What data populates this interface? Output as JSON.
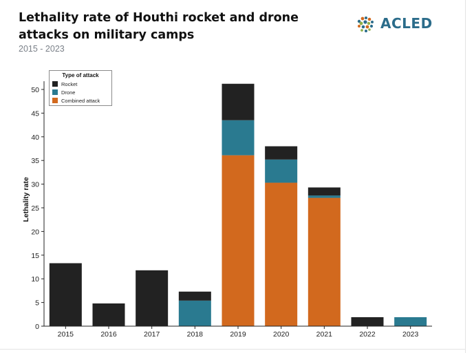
{
  "header": {
    "title": "Lethality rate of Houthi rocket and drone attacks on military camps",
    "subtitle": "2015 - 2023",
    "logo_text": "ACLED"
  },
  "chart_data": {
    "type": "bar",
    "stacked": true,
    "title": "Lethality rate of Houthi rocket and drone attacks on military camps",
    "subtitle": "2015 - 2023",
    "xlabel": "",
    "ylabel": "Lethality rate",
    "ylim": [
      0,
      52
    ],
    "yticks": [
      0,
      5,
      10,
      15,
      20,
      25,
      30,
      35,
      40,
      45,
      50
    ],
    "categories": [
      "2015",
      "2016",
      "2017",
      "2018",
      "2019",
      "2020",
      "2021",
      "2022",
      "2023"
    ],
    "series": [
      {
        "name": "Combined attack",
        "color": "#d2691e",
        "values": [
          0,
          0,
          0,
          0,
          36.1,
          30.3,
          27.1,
          0,
          0
        ]
      },
      {
        "name": "Drone",
        "color": "#2a7a90",
        "values": [
          0,
          0,
          0,
          5.4,
          7.4,
          4.9,
          0.5,
          0,
          1.9
        ]
      },
      {
        "name": "Rocket",
        "color": "#222222",
        "values": [
          13.3,
          4.8,
          11.8,
          1.9,
          7.7,
          2.8,
          1.7,
          1.9,
          0
        ]
      }
    ],
    "legend": {
      "title": "Type of attack",
      "placement": "top-left",
      "items": [
        {
          "label": "Rocket",
          "color": "#222222"
        },
        {
          "label": "Drone",
          "color": "#2a7a90"
        },
        {
          "label": "Combined attack",
          "color": "#d2691e"
        }
      ]
    },
    "grid": false
  }
}
